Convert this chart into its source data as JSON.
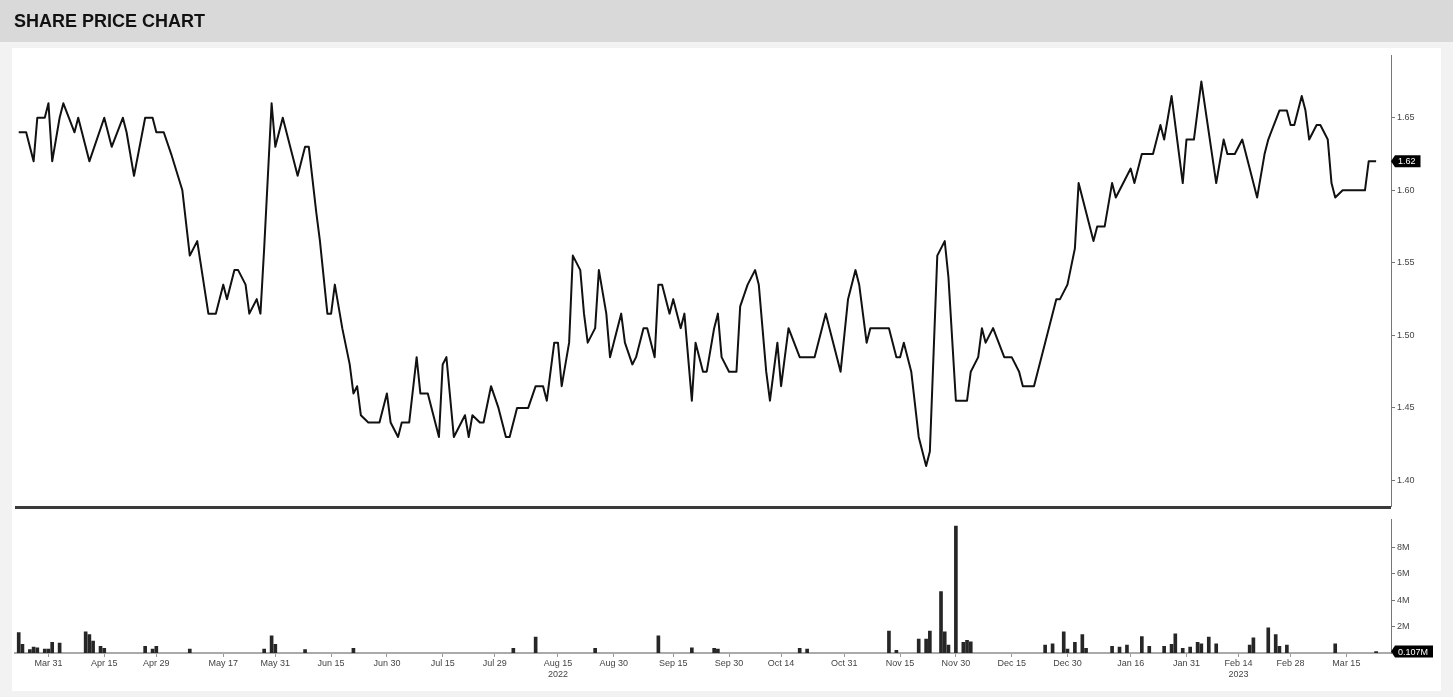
{
  "chart_data": [
    {
      "type": "line",
      "title": "SHARE PRICE CHART",
      "color": "#111111",
      "marker": "none",
      "tick_labels": "y",
      "x": [
        "2022-03-23",
        "2022-03-25",
        "2022-03-27",
        "2022-03-28",
        "2022-03-30",
        "2022-03-31",
        "2022-04-01",
        "2022-04-03",
        "2022-04-04",
        "2022-04-07",
        "2022-04-08",
        "2022-04-11",
        "2022-04-15",
        "2022-04-17",
        "2022-04-20",
        "2022-04-21",
        "2022-04-23",
        "2022-04-26",
        "2022-04-28",
        "2022-04-29",
        "2022-05-01",
        "2022-05-03",
        "2022-05-06",
        "2022-05-08",
        "2022-05-10",
        "2022-05-13",
        "2022-05-15",
        "2022-05-17",
        "2022-05-18",
        "2022-05-20",
        "2022-05-21",
        "2022-05-23",
        "2022-05-24",
        "2022-05-26",
        "2022-05-27",
        "2022-05-28",
        "2022-05-30",
        "2022-05-31",
        "2022-06-02",
        "2022-06-03",
        "2022-06-05",
        "2022-06-06",
        "2022-06-08",
        "2022-06-09",
        "2022-06-11",
        "2022-06-12",
        "2022-06-14",
        "2022-06-15",
        "2022-06-16",
        "2022-06-18",
        "2022-06-20",
        "2022-06-21",
        "2022-06-22",
        "2022-06-23",
        "2022-06-25",
        "2022-06-28",
        "2022-06-30",
        "2022-07-01",
        "2022-07-03",
        "2022-07-04",
        "2022-07-06",
        "2022-07-08",
        "2022-07-09",
        "2022-07-11",
        "2022-07-14",
        "2022-07-15",
        "2022-07-16",
        "2022-07-18",
        "2022-07-21",
        "2022-07-22",
        "2022-07-23",
        "2022-07-25",
        "2022-07-26",
        "2022-07-28",
        "2022-07-30",
        "2022-08-01",
        "2022-08-02",
        "2022-08-04",
        "2022-08-07",
        "2022-08-09",
        "2022-08-11",
        "2022-08-12",
        "2022-08-14",
        "2022-08-15",
        "2022-08-16",
        "2022-08-18",
        "2022-08-19",
        "2022-08-21",
        "2022-08-22",
        "2022-08-23",
        "2022-08-25",
        "2022-08-26",
        "2022-08-28",
        "2022-08-29",
        "2022-08-30",
        "2022-09-01",
        "2022-09-02",
        "2022-09-04",
        "2022-09-05",
        "2022-09-07",
        "2022-09-08",
        "2022-09-10",
        "2022-09-11",
        "2022-09-12",
        "2022-09-14",
        "2022-09-15",
        "2022-09-17",
        "2022-09-18",
        "2022-09-20",
        "2022-09-21",
        "2022-09-23",
        "2022-09-24",
        "2022-09-26",
        "2022-09-27",
        "2022-09-28",
        "2022-09-30",
        "2022-10-02",
        "2022-10-03",
        "2022-10-05",
        "2022-10-07",
        "2022-10-08",
        "2022-10-10",
        "2022-10-11",
        "2022-10-13",
        "2022-10-14",
        "2022-10-16",
        "2022-10-19",
        "2022-10-23",
        "2022-10-24",
        "2022-10-26",
        "2022-10-30",
        "2022-11-01",
        "2022-11-03",
        "2022-11-04",
        "2022-11-06",
        "2022-11-07",
        "2022-11-12",
        "2022-11-14",
        "2022-11-15",
        "2022-11-16",
        "2022-11-18",
        "2022-11-20",
        "2022-11-22",
        "2022-11-23",
        "2022-11-25",
        "2022-11-27",
        "2022-11-28",
        "2022-11-30",
        "2022-12-03",
        "2022-12-04",
        "2022-12-06",
        "2022-12-07",
        "2022-12-08",
        "2022-12-10",
        "2022-12-13",
        "2022-12-15",
        "2022-12-17",
        "2022-12-18",
        "2022-12-21",
        "2022-12-22",
        "2022-12-24",
        "2022-12-26",
        "2022-12-27",
        "2022-12-28",
        "2022-12-30",
        "2023-01-01",
        "2023-01-02",
        "2023-01-04",
        "2023-01-06",
        "2023-01-07",
        "2023-01-09",
        "2023-01-11",
        "2023-01-12",
        "2023-01-14",
        "2023-01-16",
        "2023-01-17",
        "2023-01-19",
        "2023-01-22",
        "2023-01-24",
        "2023-01-25",
        "2023-01-27",
        "2023-01-30",
        "2023-01-31",
        "2023-02-02",
        "2023-02-04",
        "2023-02-08",
        "2023-02-10",
        "2023-02-11",
        "2023-02-13",
        "2023-02-15",
        "2023-02-17",
        "2023-02-19",
        "2023-02-21",
        "2023-02-22",
        "2023-02-25",
        "2023-02-27",
        "2023-02-28",
        "2023-03-01",
        "2023-03-03",
        "2023-03-04",
        "2023-03-05",
        "2023-03-07",
        "2023-03-08",
        "2023-03-10",
        "2023-03-11",
        "2023-03-12",
        "2023-03-14",
        "2023-03-20",
        "2023-03-21",
        "2023-03-23"
      ],
      "values": [
        1.64,
        1.64,
        1.62,
        1.65,
        1.65,
        1.66,
        1.62,
        1.65,
        1.66,
        1.64,
        1.65,
        1.62,
        1.65,
        1.63,
        1.65,
        1.64,
        1.61,
        1.65,
        1.65,
        1.64,
        1.64,
        1.625,
        1.6,
        1.555,
        1.565,
        1.515,
        1.515,
        1.535,
        1.525,
        1.545,
        1.545,
        1.535,
        1.515,
        1.525,
        1.515,
        1.56,
        1.66,
        1.63,
        1.65,
        1.64,
        1.62,
        1.61,
        1.63,
        1.63,
        1.585,
        1.565,
        1.515,
        1.515,
        1.535,
        1.505,
        1.48,
        1.46,
        1.465,
        1.445,
        1.44,
        1.44,
        1.46,
        1.44,
        1.43,
        1.44,
        1.44,
        1.485,
        1.46,
        1.46,
        1.43,
        1.48,
        1.485,
        1.43,
        1.445,
        1.43,
        1.445,
        1.44,
        1.44,
        1.465,
        1.45,
        1.43,
        1.43,
        1.45,
        1.45,
        1.465,
        1.465,
        1.455,
        1.495,
        1.495,
        1.465,
        1.495,
        1.555,
        1.545,
        1.515,
        1.495,
        1.505,
        1.545,
        1.515,
        1.485,
        1.495,
        1.515,
        1.495,
        1.48,
        1.485,
        1.505,
        1.505,
        1.485,
        1.535,
        1.535,
        1.515,
        1.525,
        1.505,
        1.515,
        1.455,
        1.495,
        1.475,
        1.475,
        1.505,
        1.515,
        1.485,
        1.475,
        1.475,
        1.52,
        1.535,
        1.545,
        1.535,
        1.475,
        1.455,
        1.495,
        1.465,
        1.505,
        1.485,
        1.485,
        1.495,
        1.515,
        1.475,
        1.525,
        1.545,
        1.535,
        1.495,
        1.505,
        1.505,
        1.485,
        1.485,
        1.495,
        1.475,
        1.43,
        1.41,
        1.42,
        1.555,
        1.565,
        1.54,
        1.455,
        1.455,
        1.475,
        1.485,
        1.505,
        1.495,
        1.505,
        1.485,
        1.485,
        1.475,
        1.465,
        1.465,
        1.475,
        1.495,
        1.515,
        1.525,
        1.525,
        1.535,
        1.56,
        1.605,
        1.585,
        1.565,
        1.575,
        1.575,
        1.605,
        1.595,
        1.605,
        1.615,
        1.605,
        1.625,
        1.625,
        1.645,
        1.635,
        1.665,
        1.605,
        1.635,
        1.635,
        1.675,
        1.605,
        1.635,
        1.625,
        1.625,
        1.635,
        1.615,
        1.595,
        1.625,
        1.635,
        1.655,
        1.655,
        1.645,
        1.645,
        1.665,
        1.655,
        1.635,
        1.645,
        1.645,
        1.635,
        1.605,
        1.595,
        1.6,
        1.6,
        1.62,
        1.62
      ],
      "xlim": [
        "2022-03-22",
        "2023-03-27"
      ],
      "ylim": [
        1.382,
        1.693
      ],
      "yticks": [
        {
          "value": 1.4,
          "label": "1.40"
        },
        {
          "value": 1.45,
          "label": "1.45"
        },
        {
          "value": 1.5,
          "label": "1.50"
        },
        {
          "value": 1.55,
          "label": "1.55"
        },
        {
          "value": 1.6,
          "label": "1.60"
        },
        {
          "value": 1.65,
          "label": "1.65"
        }
      ],
      "annotations": [
        "1.62"
      ]
    },
    {
      "type": "bar",
      "color": "#262626",
      "x": [
        "2022-03-23",
        "2022-03-24",
        "2022-03-26",
        "2022-03-27",
        "2022-03-28",
        "2022-03-30",
        "2022-03-31",
        "2022-04-01",
        "2022-04-03",
        "2022-04-10",
        "2022-04-11",
        "2022-04-12",
        "2022-04-14",
        "2022-04-15",
        "2022-04-26",
        "2022-04-28",
        "2022-04-29",
        "2022-05-08",
        "2022-05-28",
        "2022-05-30",
        "2022-05-31",
        "2022-06-08",
        "2022-06-21",
        "2022-08-03",
        "2022-08-09",
        "2022-08-25",
        "2022-09-11",
        "2022-09-20",
        "2022-09-26",
        "2022-09-27",
        "2022-10-19",
        "2022-10-21",
        "2022-11-12",
        "2022-11-14",
        "2022-11-20",
        "2022-11-22",
        "2022-11-23",
        "2022-11-26",
        "2022-11-27",
        "2022-11-28",
        "2022-11-30",
        "2022-12-02",
        "2022-12-03",
        "2022-12-04",
        "2022-12-24",
        "2022-12-26",
        "2022-12-29",
        "2022-12-30",
        "2023-01-01",
        "2023-01-03",
        "2023-01-04",
        "2023-01-11",
        "2023-01-13",
        "2023-01-15",
        "2023-01-19",
        "2023-01-21",
        "2023-01-25",
        "2023-01-27",
        "2023-01-28",
        "2023-01-30",
        "2023-02-01",
        "2023-02-03",
        "2023-02-04",
        "2023-02-06",
        "2023-02-08",
        "2023-02-17",
        "2023-02-18",
        "2023-02-22",
        "2023-02-24",
        "2023-02-25",
        "2023-02-27",
        "2023-03-12",
        "2023-03-23"
      ],
      "values": [
        1.55,
        0.65,
        0.25,
        0.45,
        0.4,
        0.3,
        0.3,
        0.8,
        0.75,
        1.6,
        1.4,
        0.9,
        0.5,
        0.35,
        0.5,
        0.3,
        0.5,
        0.3,
        0.3,
        1.3,
        0.65,
        0.25,
        0.35,
        0.35,
        1.2,
        0.35,
        1.3,
        0.4,
        0.35,
        0.3,
        0.35,
        0.3,
        1.65,
        0.2,
        1.05,
        1.05,
        1.65,
        4.65,
        1.6,
        0.6,
        9.6,
        0.8,
        0.95,
        0.85,
        0.6,
        0.7,
        1.6,
        0.3,
        0.8,
        1.4,
        0.35,
        0.5,
        0.45,
        0.6,
        1.25,
        0.5,
        0.5,
        0.65,
        1.45,
        0.35,
        0.45,
        0.8,
        0.7,
        1.2,
        0.7,
        0.6,
        1.15,
        1.9,
        1.4,
        0.5,
        0.6,
        0.7,
        0.107
      ],
      "xlim": [
        "2022-03-22",
        "2023-03-27"
      ],
      "ylim": [
        0,
        10.1
      ],
      "xticks": [
        {
          "value": "2022-03-31",
          "label": "Mar 31"
        },
        {
          "value": "2022-04-15",
          "label": "Apr 15"
        },
        {
          "value": "2022-04-29",
          "label": "Apr 29"
        },
        {
          "value": "2022-05-17",
          "label": "May 17"
        },
        {
          "value": "2022-05-31",
          "label": "May 31"
        },
        {
          "value": "2022-06-15",
          "label": "Jun 15"
        },
        {
          "value": "2022-06-30",
          "label": "Jun 30"
        },
        {
          "value": "2022-07-15",
          "label": "Jul 15"
        },
        {
          "value": "2022-07-29",
          "label": "Jul 29"
        },
        {
          "value": "2022-08-15",
          "label": "Aug 15\n2022"
        },
        {
          "value": "2022-08-30",
          "label": "Aug 30"
        },
        {
          "value": "2022-09-15",
          "label": "Sep 15"
        },
        {
          "value": "2022-09-30",
          "label": "Sep 30"
        },
        {
          "value": "2022-10-14",
          "label": "Oct 14"
        },
        {
          "value": "2022-10-31",
          "label": "Oct 31"
        },
        {
          "value": "2022-11-15",
          "label": "Nov 15"
        },
        {
          "value": "2022-11-30",
          "label": "Nov 30"
        },
        {
          "value": "2022-12-15",
          "label": "Dec 15"
        },
        {
          "value": "2022-12-30",
          "label": "Dec 30"
        },
        {
          "value": "2023-01-16",
          "label": "Jan 16"
        },
        {
          "value": "2023-01-31",
          "label": "Jan 31"
        },
        {
          "value": "2023-02-14",
          "label": "Feb 14\n2023"
        },
        {
          "value": "2023-02-28",
          "label": "Feb 28"
        },
        {
          "value": "2023-03-15",
          "label": "Mar 15"
        }
      ],
      "yticks": [
        {
          "value": 2,
          "label": "2M"
        },
        {
          "value": 4,
          "label": "4M"
        },
        {
          "value": 6,
          "label": "6M"
        },
        {
          "value": 8,
          "label": "8M"
        }
      ],
      "annotations": [
        "0.107M"
      ]
    }
  ]
}
